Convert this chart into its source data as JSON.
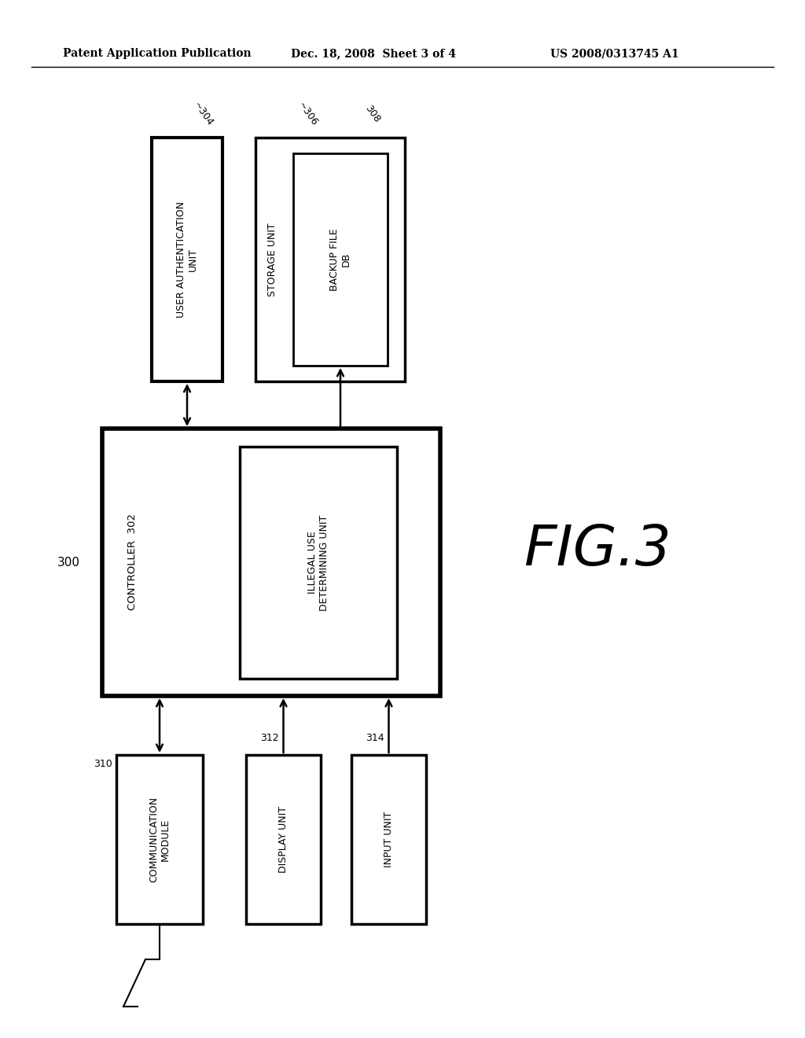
{
  "bg_color": "#ffffff",
  "header_left": "Patent Application Publication",
  "header_mid": "Dec. 18, 2008  Sheet 3 of 4",
  "header_right": "US 2008/0313745 A1",
  "fig_label": "FIG.3"
}
